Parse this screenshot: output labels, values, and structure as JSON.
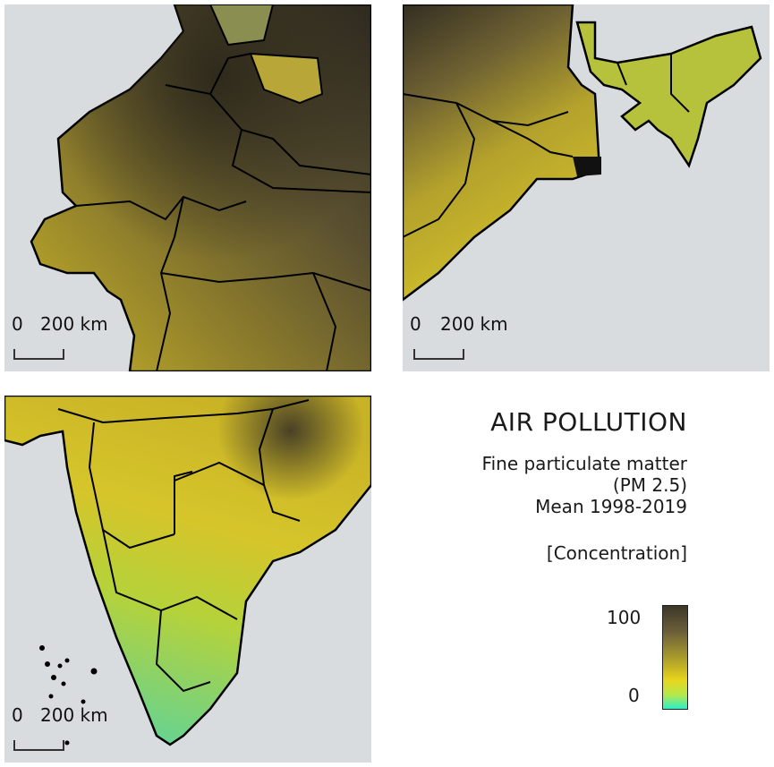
{
  "panels": [
    {
      "name": "northwest-map",
      "scale": {
        "zero": "0",
        "distance": "200 km"
      }
    },
    {
      "name": "northeast-map",
      "scale": {
        "zero": "0",
        "distance": "200 km"
      }
    },
    {
      "name": "south-map",
      "scale": {
        "zero": "0",
        "distance": "200 km"
      }
    }
  ],
  "legend": {
    "title": "AIR POLLUTION",
    "subtitle_line1": "Fine particulate matter",
    "subtitle_line2": "(PM 2.5)",
    "subtitle_line3": "Mean 1998-2019",
    "colorbar_title": "[Concentration]",
    "max_label": "100",
    "min_label": "0"
  },
  "colors": {
    "sea": "#d6dadd",
    "high": "#3c3628",
    "mid": "#c9b52a",
    "low": "#2ef0c8",
    "border": "#000000"
  }
}
